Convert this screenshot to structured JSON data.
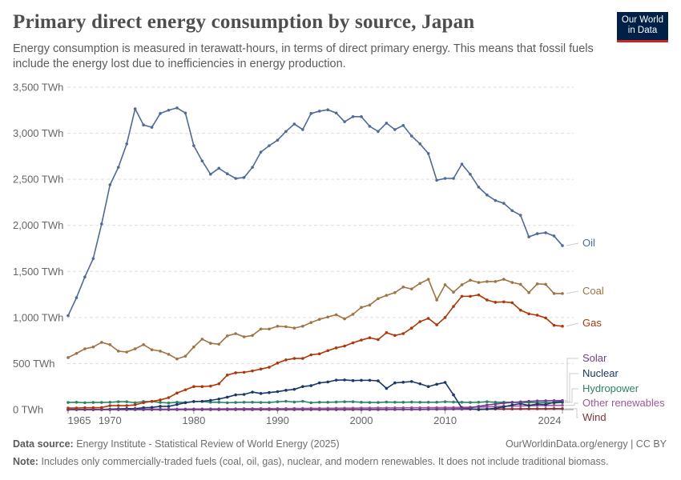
{
  "header": {
    "title": "Primary direct energy consumption by source, Japan",
    "subtitle": "Energy consumption is measured in terawatt-hours, in terms of direct primary energy. This means that fossil fuels include the energy lost due to inefficiencies in energy production.",
    "logo_text": "Our World in Data"
  },
  "footer": {
    "source_label": "Data source:",
    "source_text": "Energy Institute - Statistical Review of World Energy (2025)",
    "url_text": "OurWorldinData.org/energy | CC BY",
    "note_label": "Note:",
    "note_text": "Includes only commercially-traded fuels (coal, oil, gas), nuclear, and modern renewables. It does not include traditional biomass."
  },
  "chart_data": {
    "type": "line",
    "title": "Primary direct energy consumption by source, Japan",
    "xlabel": "",
    "ylabel": "",
    "unit": "TWh",
    "xlim": [
      1965,
      2024
    ],
    "ylim": [
      0,
      3500
    ],
    "grid": true,
    "legend_placement": "right (inline labels at line ends)",
    "y_ticks": [
      {
        "value": 0,
        "label": "0 TWh"
      },
      {
        "value": 500,
        "label": "500 TWh"
      },
      {
        "value": 1000,
        "label": "1,000 TWh"
      },
      {
        "value": 1500,
        "label": "1,500 TWh"
      },
      {
        "value": 2000,
        "label": "2,000 TWh"
      },
      {
        "value": 2500,
        "label": "2,500 TWh"
      },
      {
        "value": 3000,
        "label": "3,000 TWh"
      },
      {
        "value": 3500,
        "label": "3,500 TWh"
      }
    ],
    "x_ticks": [
      {
        "value": 1965,
        "label": "1965"
      },
      {
        "value": 1970,
        "label": "1970"
      },
      {
        "value": 1980,
        "label": "1980"
      },
      {
        "value": 1990,
        "label": "1990"
      },
      {
        "value": 2000,
        "label": "2000"
      },
      {
        "value": 2010,
        "label": "2010"
      },
      {
        "value": 2024,
        "label": "2024"
      }
    ],
    "x_start": 1965,
    "series": [
      {
        "name": "Oil",
        "color": "#4c6a9c",
        "values": [
          1020,
          1215,
          1440,
          1640,
          2015,
          2440,
          2630,
          2885,
          3265,
          3090,
          3065,
          3215,
          3250,
          3275,
          3220,
          2865,
          2700,
          2555,
          2620,
          2560,
          2510,
          2520,
          2630,
          2795,
          2865,
          2925,
          3020,
          3100,
          3040,
          3215,
          3240,
          3255,
          3220,
          3125,
          3180,
          3180,
          3075,
          3020,
          3110,
          3040,
          3085,
          2970,
          2885,
          2780,
          2490,
          2510,
          2510,
          2665,
          2555,
          2415,
          2330,
          2270,
          2240,
          2160,
          2110,
          1875,
          1910,
          1920,
          1885,
          1780
        ]
      },
      {
        "name": "Coal",
        "color": "#a2723f",
        "values": [
          565,
          610,
          660,
          680,
          730,
          705,
          635,
          625,
          660,
          705,
          650,
          635,
          600,
          550,
          580,
          680,
          765,
          720,
          710,
          800,
          825,
          790,
          805,
          875,
          875,
          905,
          900,
          885,
          905,
          945,
          980,
          1005,
          1030,
          985,
          1035,
          1110,
          1135,
          1205,
          1240,
          1270,
          1330,
          1310,
          1370,
          1415,
          1190,
          1355,
          1275,
          1355,
          1405,
          1380,
          1390,
          1390,
          1415,
          1380,
          1360,
          1270,
          1365,
          1360,
          1260,
          1260
        ]
      },
      {
        "name": "Gas",
        "color": "#b13507",
        "values": [
          17,
          17,
          20,
          20,
          22,
          43,
          43,
          43,
          52,
          75,
          90,
          105,
          130,
          180,
          215,
          250,
          250,
          255,
          280,
          375,
          400,
          405,
          420,
          440,
          460,
          505,
          540,
          555,
          555,
          595,
          605,
          640,
          670,
          690,
          725,
          755,
          780,
          760,
          835,
          805,
          825,
          885,
          955,
          990,
          920,
          1000,
          1120,
          1230,
          1230,
          1245,
          1190,
          1165,
          1170,
          1160,
          1080,
          1040,
          1025,
          995,
          915,
          905
        ]
      },
      {
        "name": "Solar",
        "color": "#6d3e91",
        "values": [
          0,
          0,
          0,
          0,
          0,
          0,
          0,
          0,
          0,
          0,
          0,
          0,
          0,
          0,
          0,
          0,
          0,
          0,
          0,
          0,
          0,
          0,
          0,
          0,
          0,
          0,
          0,
          0,
          0,
          0,
          0,
          0,
          0,
          0,
          0,
          1,
          1,
          1,
          1,
          2,
          2,
          2,
          2,
          3,
          4,
          5,
          7,
          10,
          20,
          35,
          50,
          60,
          70,
          78,
          84,
          90,
          94,
          96,
          97,
          98
        ]
      },
      {
        "name": "Nuclear",
        "color": "#18376b",
        "values": [
          0,
          0,
          0,
          0,
          1,
          5,
          8,
          10,
          10,
          20,
          23,
          35,
          35,
          55,
          75,
          87,
          90,
          100,
          115,
          135,
          160,
          165,
          190,
          175,
          185,
          195,
          210,
          220,
          250,
          260,
          290,
          300,
          320,
          322,
          315,
          318,
          318,
          312,
          230,
          290,
          297,
          305,
          280,
          250,
          275,
          295,
          160,
          15,
          10,
          0,
          5,
          15,
          30,
          50,
          65,
          45,
          60,
          55,
          80,
          85
        ]
      },
      {
        "name": "Hydropower",
        "color": "#2c8465",
        "values": [
          78,
          80,
          75,
          78,
          78,
          80,
          85,
          85,
          75,
          88,
          88,
          78,
          72,
          80,
          78,
          88,
          88,
          80,
          80,
          75,
          78,
          80,
          80,
          78,
          78,
          85,
          90,
          82,
          90,
          75,
          80,
          80,
          82,
          85,
          85,
          80,
          78,
          78,
          82,
          80,
          80,
          82,
          80,
          80,
          80,
          85,
          82,
          80,
          78,
          80,
          85,
          80,
          80,
          80,
          78,
          78,
          75,
          78,
          72,
          78
        ]
      },
      {
        "name": "Other renewables",
        "color": "#a2559c",
        "values": [
          2,
          2,
          2,
          3,
          3,
          3,
          3,
          4,
          4,
          4,
          5,
          5,
          5,
          6,
          6,
          7,
          7,
          8,
          8,
          9,
          9,
          10,
          10,
          11,
          11,
          12,
          12,
          13,
          13,
          14,
          14,
          15,
          15,
          16,
          16,
          17,
          17,
          18,
          18,
          19,
          19,
          20,
          20,
          21,
          21,
          22,
          22,
          24,
          26,
          28,
          30,
          33,
          36,
          38,
          40,
          42,
          44,
          45,
          46,
          46
        ]
      },
      {
        "name": "Wind",
        "color": "#883039",
        "values": [
          0,
          0,
          0,
          0,
          0,
          0,
          0,
          0,
          0,
          0,
          0,
          0,
          0,
          0,
          0,
          0,
          0,
          0,
          0,
          0,
          0,
          0,
          0,
          0,
          0,
          0,
          0,
          0,
          0,
          0,
          0,
          0,
          0,
          0,
          0,
          0,
          0,
          0,
          1,
          1,
          1,
          2,
          2,
          3,
          3,
          4,
          5,
          5,
          5,
          5,
          6,
          6,
          7,
          7,
          8,
          9,
          9,
          9,
          10,
          10
        ]
      }
    ]
  }
}
